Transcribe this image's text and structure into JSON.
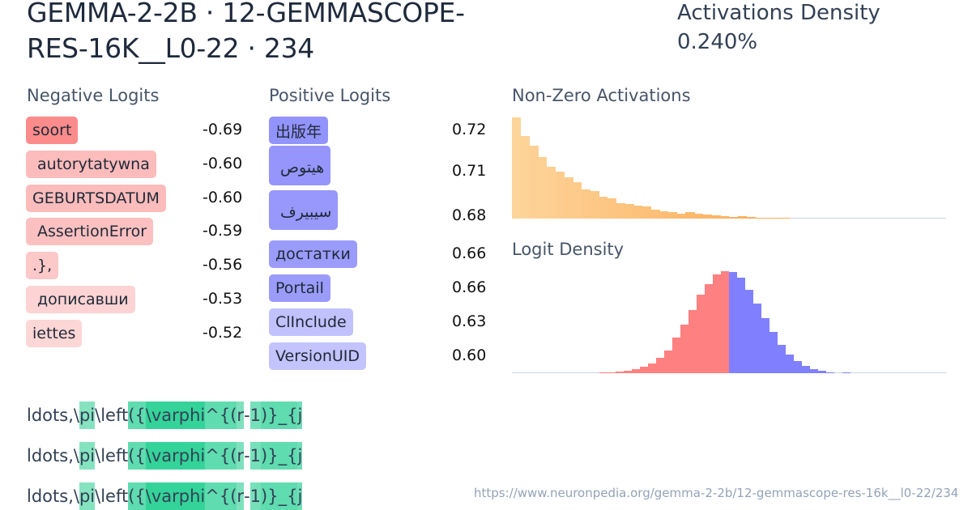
{
  "header": {
    "title": "GEMMA-2-2B · 12-GEMMASCOPE-RES-16K__L0-22 · 234",
    "density_label": "Activations Density",
    "density_value": "0.240%"
  },
  "negative_logits": {
    "label": "Negative Logits",
    "items": [
      {
        "token": "soort",
        "value": "-0.69",
        "color": "#fc8b8b"
      },
      {
        "token": " autorytatywna",
        "value": "-0.60",
        "color": "#fcbcbc"
      },
      {
        "token": "GEBURTSDATUM",
        "value": "-0.60",
        "color": "#fcbcbc"
      },
      {
        "token": " AssertionError",
        "value": "-0.59",
        "color": "#fcc0c0"
      },
      {
        "token": ".},",
        "value": "-0.56",
        "color": "#fcc8c8"
      },
      {
        "token": " дописавши",
        "value": "-0.53",
        "color": "#fdd3d3"
      },
      {
        "token": "iettes",
        "value": "-0.52",
        "color": "#fdd6d6"
      }
    ]
  },
  "positive_logits": {
    "label": "Positive Logits",
    "items": [
      {
        "token": "出版年",
        "value": "0.72",
        "color": "#9393fc"
      },
      {
        "token": " هيتوص",
        "value": "0.71",
        "color": "#9595fc"
      },
      {
        "token": " سيبيرف",
        "value": "0.68",
        "color": "#9797fc"
      },
      {
        "token": "достатки",
        "value": "0.66",
        "color": "#9b9bfc"
      },
      {
        "token": "Portail",
        "value": "0.66",
        "color": "#9b9bfc"
      },
      {
        "token": "ClInclude",
        "value": "0.63",
        "color": "#c1c1fd"
      },
      {
        "token": "VersionUID",
        "value": "0.60",
        "color": "#c3c3fd"
      }
    ]
  },
  "chart_data": [
    {
      "type": "bar",
      "title": "Non-Zero Activations",
      "xlabel": "",
      "ylabel": "",
      "color_start": "#fdd49a",
      "color_end": "#fbac58",
      "values": [
        125,
        102,
        90,
        76,
        64,
        58,
        51,
        45,
        36,
        34,
        27,
        25,
        19,
        18,
        16,
        15,
        11,
        9,
        8,
        6,
        8,
        6,
        5,
        4,
        3,
        2,
        3,
        2,
        1,
        1,
        1,
        1,
        0,
        0,
        0,
        0,
        0,
        0,
        0,
        0,
        0,
        0,
        0,
        0,
        0,
        0,
        0,
        0,
        0,
        0
      ]
    },
    {
      "type": "bar",
      "title": "Logit Density",
      "xlabel": "",
      "ylabel": "",
      "negative_color": "#ff8080",
      "positive_color": "#8080ff",
      "negative_values": [
        0,
        0,
        0,
        0,
        0,
        0,
        0,
        0,
        0,
        0,
        0,
        1,
        1,
        2,
        3,
        5,
        8,
        12,
        19,
        28,
        44,
        60,
        79,
        98,
        111,
        123,
        127
      ],
      "positive_values": [
        126,
        119,
        104,
        87,
        69,
        51,
        35,
        23,
        15,
        9,
        5,
        3,
        1,
        0,
        1,
        0,
        0,
        0,
        0,
        0,
        0,
        0,
        0,
        0,
        0
      ]
    }
  ],
  "charts": {
    "activations_label": "Non-Zero Activations",
    "logit_density_label": "Logit Density"
  },
  "context": {
    "lines": [
      [
        {
          "text": "ldots,\\",
          "bg": ""
        },
        {
          "text": "pi",
          "bg": "#86e3c0"
        },
        {
          "text": "\\left",
          "bg": ""
        },
        {
          "text": "({",
          "bg": "#5fdcb0"
        },
        {
          "text": "\\varphi",
          "bg": "#34d399"
        },
        {
          "text": "^{(",
          "bg": "#5fdcb0"
        },
        {
          "text": "r",
          "bg": "#7ee1bd"
        },
        {
          "text": "-",
          "bg": ""
        },
        {
          "text": "1",
          "bg": "#76e0ba"
        },
        {
          "text": ")}_{",
          "bg": "#5fdcb0"
        },
        {
          "text": "j",
          "bg": "#6fdeb7"
        }
      ],
      [
        {
          "text": "ldots,\\",
          "bg": ""
        },
        {
          "text": "pi",
          "bg": "#86e3c0"
        },
        {
          "text": "\\left",
          "bg": ""
        },
        {
          "text": "({",
          "bg": "#5fdcb0"
        },
        {
          "text": "\\varphi",
          "bg": "#34d399"
        },
        {
          "text": "^{(",
          "bg": "#5fdcb0"
        },
        {
          "text": "r",
          "bg": "#7ee1bd"
        },
        {
          "text": "-",
          "bg": ""
        },
        {
          "text": "1",
          "bg": "#76e0ba"
        },
        {
          "text": ")}_{",
          "bg": "#5fdcb0"
        },
        {
          "text": "j",
          "bg": "#6fdeb7"
        }
      ],
      [
        {
          "text": "ldots,\\",
          "bg": ""
        },
        {
          "text": "pi",
          "bg": "#86e3c0"
        },
        {
          "text": "\\left",
          "bg": ""
        },
        {
          "text": "({",
          "bg": "#5fdcb0"
        },
        {
          "text": "\\varphi",
          "bg": "#34d399"
        },
        {
          "text": "^{(",
          "bg": "#5fdcb0"
        },
        {
          "text": "r",
          "bg": "#7ee1bd"
        },
        {
          "text": "-",
          "bg": ""
        },
        {
          "text": "1",
          "bg": "#76e0ba"
        },
        {
          "text": ")}_{",
          "bg": "#5fdcb0"
        },
        {
          "text": "j",
          "bg": "#6fdeb7"
        }
      ]
    ]
  },
  "footer": {
    "url": "https://www.neuronpedia.org/gemma-2-2b/12-gemmascope-res-16k__l0-22/234"
  }
}
